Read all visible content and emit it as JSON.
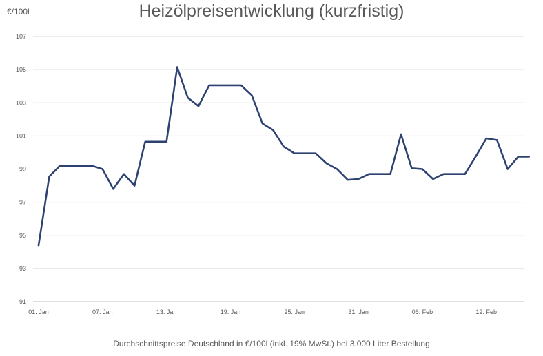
{
  "chart_data": {
    "type": "line",
    "title": "Heizölpreisentwicklung (kurzfristig)",
    "unit_label": "€/100l",
    "footnote": "Durchschnittspreise Deutschland in €/100l (inkl. 19% MwSt.) bei 3.000 Liter Bestellung",
    "ylim": [
      91,
      107
    ],
    "yticks": [
      "91",
      "93",
      "95",
      "97",
      "99",
      "101",
      "103",
      "105",
      "107"
    ],
    "xtick_labels": [
      "01. Jan",
      "07. Jan",
      "13. Jan",
      "19. Jan",
      "25. Jan",
      "31. Jan",
      "06. Feb",
      "12. Feb"
    ],
    "grid": "horizontal",
    "line_color": "#2E4272",
    "series": [
      {
        "values": [
          94.4,
          98.55,
          99.2,
          99.2,
          99.2,
          99.2,
          99.0,
          97.8,
          98.7,
          98.0,
          100.65,
          100.65,
          100.65,
          105.15,
          103.3,
          102.8,
          104.05,
          104.05,
          104.05,
          104.05,
          103.45,
          101.75,
          101.35,
          100.35,
          99.95,
          99.95,
          99.95,
          99.35,
          99.0,
          98.35,
          98.4,
          98.7,
          98.7,
          98.7,
          101.1,
          99.05,
          99.0,
          98.4,
          98.7,
          98.7,
          98.7,
          99.75,
          100.85,
          100.75,
          99.0,
          99.75,
          99.75
        ]
      }
    ]
  }
}
